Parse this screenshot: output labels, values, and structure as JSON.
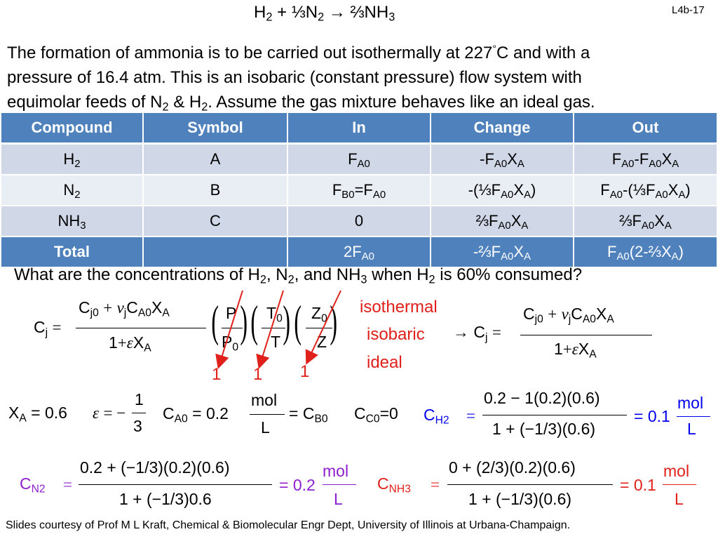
{
  "slide": {
    "number": "L4b-17",
    "reaction": {
      "h": "H",
      "two_a": "2",
      "plus": " + ⅓N",
      "two_b": "2",
      "arrow": " → ⅔NH",
      "three": "3"
    },
    "problem": {
      "l1": "The formation of ammonia is to be carried out isothermally at 227",
      "deg": "°",
      "l1b": "C and with a",
      "l2": "pressure of 16.4 atm.  This is an isobaric (constant pressure) flow system with",
      "l3a": "equimolar feeds of N",
      "l3b": " & H",
      "l3c": ". Assume the gas mixture behaves like an ideal gas."
    },
    "question": {
      "a": "What are the concentrations of H",
      "b": ", N",
      "c": ", and NH",
      "d": " when H",
      "e": " is 60% consumed?"
    },
    "footer": "Slides courtesy of Prof M L Kraft, Chemical & Biomolecular Engr Dept, University of Illinois at Urbana-Champaign."
  },
  "table": {
    "headers": [
      "Compound",
      "Symbol",
      "In",
      "Change",
      "Out"
    ],
    "rows": [
      {
        "compound": "H",
        "compound_sub": "2",
        "symbol": "A"
      },
      {
        "compound": "N",
        "compound_sub": "2",
        "symbol": "B"
      },
      {
        "compound": "NH",
        "compound_sub": "3",
        "symbol": "C"
      },
      {
        "compound": "Total",
        "symbol": ""
      }
    ],
    "in_zero": "0",
    "in_total": "2F",
    "out_total_tail": "(2-⅔X",
    "change_neg_third_pre": "-(⅓F",
    "change_two_third": "⅔F",
    "change_total_pre": "-⅔F"
  },
  "annotations": {
    "conditions": [
      "isothermal",
      "isobaric",
      "ideal"
    ],
    "ones": [
      "1",
      "1",
      "1"
    ]
  },
  "values": {
    "xa": "= 0.6",
    "eps_num": "1",
    "eps_den": "3",
    "ca0_val": "= 0.2",
    "unit_num": "mol",
    "unit_den": "L",
    "cb0": "= C",
    "cc0": "=0",
    "ch2_num": "0.2 − 1(0.2)(0.6)",
    "ch2_den": "1 + (−1/3)(0.6)",
    "ch2_res": "= 0.1",
    "cn2_num": "0.2 + (−1/3)(0.2)(0.6)",
    "cn2_den": "1 + (−1/3)0.6",
    "cn2_res": "= 0.2",
    "cnh3_num": "0 + (2/3)(0.2)(0.6)",
    "cnh3_den": "1 + (−1/3)(0.6)",
    "cnh3_res": "= 0.1"
  }
}
